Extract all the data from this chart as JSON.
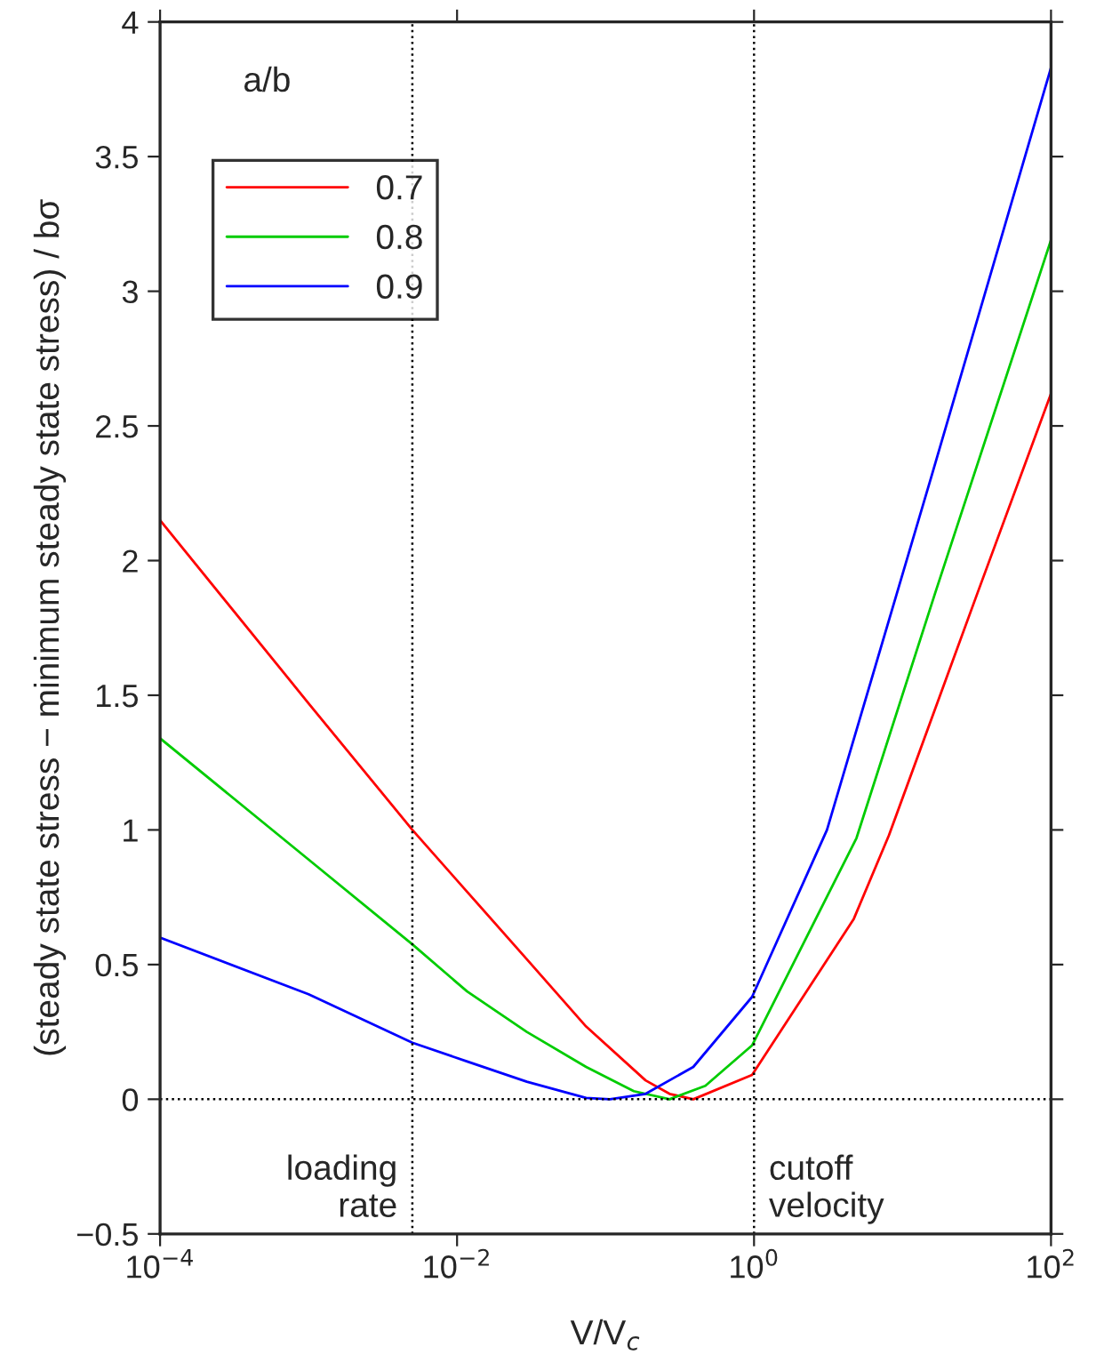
{
  "chart_data": {
    "type": "line",
    "xlabel": "V/V$_{c}$",
    "ylabel": "(steady state stress − minimum steady state stress) / bσ",
    "legend_title": "a/b",
    "log": "x",
    "grid": false,
    "legend": "top left",
    "line_style": "solid",
    "marker": "none",
    "xlim": [
      0.0001,
      100
    ],
    "xticks": [
      {
        "value": 0.0001,
        "label": "10$^{−4}$"
      },
      {
        "value": 0.01,
        "label": "10$^{−2}$"
      },
      {
        "value": 1,
        "label": "10$^{0}$"
      },
      {
        "value": 100,
        "label": "10$^{2}$"
      }
    ],
    "ylim": [
      -0.5,
      4
    ],
    "yticks": [
      {
        "value": -0.5,
        "label": "−0.5"
      },
      0,
      0.5,
      1,
      1.5,
      2,
      2.5,
      3,
      3.5,
      4
    ],
    "series": [
      {
        "name": "0.7",
        "color": "#ff0000",
        "x": [
          0.0001,
          0.001,
          0.005,
          0.0117,
          0.0295,
          0.074,
          0.186,
          0.27,
          0.39,
          0.97,
          4.7,
          8.1,
          32,
          100
        ],
        "values": [
          2.15,
          1.47,
          1.0,
          0.77,
          0.52,
          0.27,
          0.07,
          0.02,
          0,
          0.09,
          0.67,
          0.98,
          1.88,
          2.62
        ]
      },
      {
        "name": "0.8",
        "color": "#00cc00",
        "x": [
          0.0001,
          0.001,
          0.005,
          0.0117,
          0.0295,
          0.074,
          0.155,
          0.27,
          0.47,
          0.97,
          4.9,
          16.6,
          100
        ],
        "values": [
          1.34,
          0.89,
          0.575,
          0.4,
          0.25,
          0.12,
          0.03,
          0,
          0.05,
          0.2,
          0.97,
          1.88,
          3.19
        ]
      },
      {
        "name": "0.9",
        "color": "#0000ff",
        "x": [
          0.0001,
          0.001,
          0.005,
          0.0117,
          0.0295,
          0.074,
          0.107,
          0.186,
          0.39,
          0.97,
          3.1,
          15.8,
          100
        ],
        "values": [
          0.6,
          0.39,
          0.21,
          0.14,
          0.065,
          0.005,
          0,
          0.02,
          0.12,
          0.38,
          1.0,
          2.32,
          3.83
        ]
      }
    ],
    "ref_lines": [
      {
        "axis": "x",
        "value": 0.005,
        "label": "loading\nrate",
        "color": "#000000",
        "line_style": "dotted"
      },
      {
        "axis": "x",
        "value": 1,
        "label": "cutoff\nvelocity",
        "color": "#000000",
        "line_style": "dotted"
      },
      {
        "axis": "y",
        "value": 0,
        "label": null,
        "color": "#000000",
        "line_style": "dotted"
      }
    ]
  }
}
